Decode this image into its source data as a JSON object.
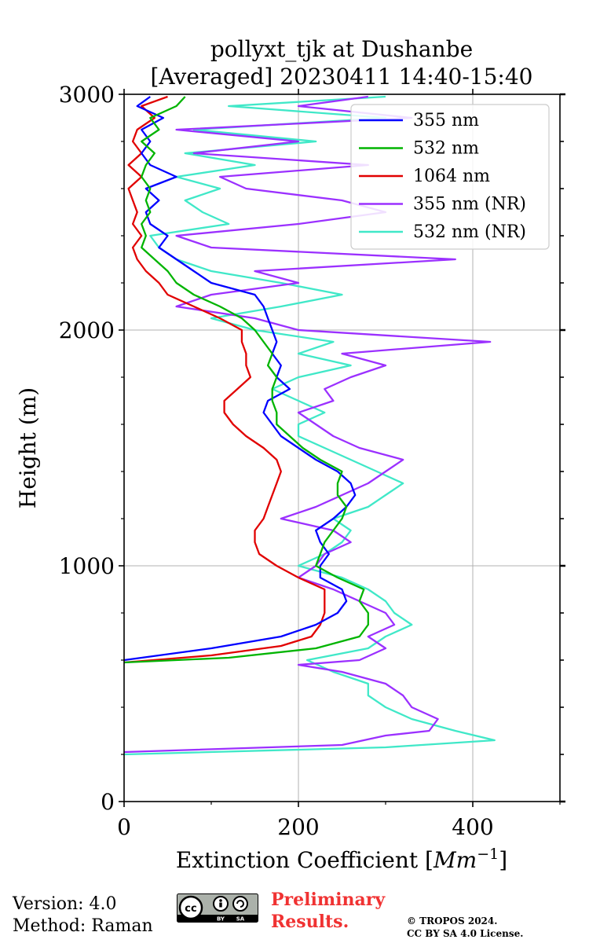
{
  "chart_data": {
    "type": "line",
    "orientation": "vertical-profile",
    "title_line1": "pollyxt_tjk at Dushanbe",
    "title_line2": "[Averaged] 20230411 14:40-15:40",
    "xlabel": "Extinction Coefficient [",
    "xlabel_unit": "Mm",
    "xlabel_exp": "−1",
    "xlabel_close": "]",
    "ylabel": "Height (m)",
    "xlim": [
      0,
      500
    ],
    "ylim": [
      0,
      3000
    ],
    "x_ticks": [
      "0",
      "200",
      "400"
    ],
    "y_ticks": [
      "0",
      "1000",
      "2000",
      "3000"
    ],
    "grid": true,
    "legend_position": "top-right",
    "series": [
      {
        "name": "355 nm",
        "color": "#0000ff",
        "points": [
          [
            0,
            600
          ],
          [
            100,
            650
          ],
          [
            180,
            700
          ],
          [
            220,
            750
          ],
          [
            245,
            800
          ],
          [
            255,
            850
          ],
          [
            250,
            900
          ],
          [
            225,
            950
          ],
          [
            225,
            1000
          ],
          [
            235,
            1050
          ],
          [
            225,
            1100
          ],
          [
            220,
            1150
          ],
          [
            240,
            1200
          ],
          [
            255,
            1250
          ],
          [
            265,
            1300
          ],
          [
            260,
            1350
          ],
          [
            245,
            1400
          ],
          [
            220,
            1450
          ],
          [
            200,
            1500
          ],
          [
            180,
            1550
          ],
          [
            170,
            1600
          ],
          [
            160,
            1650
          ],
          [
            165,
            1700
          ],
          [
            190,
            1750
          ],
          [
            175,
            1800
          ],
          [
            180,
            1850
          ],
          [
            170,
            1900
          ],
          [
            175,
            1950
          ],
          [
            170,
            2000
          ],
          [
            165,
            2050
          ],
          [
            160,
            2100
          ],
          [
            150,
            2150
          ],
          [
            100,
            2200
          ],
          [
            80,
            2250
          ],
          [
            60,
            2300
          ],
          [
            40,
            2350
          ],
          [
            50,
            2400
          ],
          [
            30,
            2450
          ],
          [
            25,
            2500
          ],
          [
            40,
            2550
          ],
          [
            25,
            2600
          ],
          [
            60,
            2650
          ],
          [
            30,
            2700
          ],
          [
            20,
            2750
          ],
          [
            30,
            2800
          ],
          [
            20,
            2850
          ],
          [
            45,
            2900
          ],
          [
            15,
            2950
          ],
          [
            30,
            2990
          ]
        ]
      },
      {
        "name": "532 nm",
        "color": "#00b400",
        "points": [
          [
            0,
            590
          ],
          [
            120,
            610
          ],
          [
            220,
            650
          ],
          [
            270,
            700
          ],
          [
            280,
            750
          ],
          [
            280,
            800
          ],
          [
            270,
            850
          ],
          [
            275,
            900
          ],
          [
            245,
            950
          ],
          [
            220,
            1000
          ],
          [
            225,
            1050
          ],
          [
            230,
            1100
          ],
          [
            240,
            1150
          ],
          [
            250,
            1200
          ],
          [
            255,
            1250
          ],
          [
            245,
            1300
          ],
          [
            245,
            1350
          ],
          [
            250,
            1400
          ],
          [
            225,
            1450
          ],
          [
            205,
            1500
          ],
          [
            190,
            1550
          ],
          [
            175,
            1600
          ],
          [
            175,
            1650
          ],
          [
            170,
            1700
          ],
          [
            170,
            1750
          ],
          [
            175,
            1800
          ],
          [
            165,
            1850
          ],
          [
            170,
            1900
          ],
          [
            160,
            1950
          ],
          [
            150,
            2000
          ],
          [
            135,
            2050
          ],
          [
            110,
            2100
          ],
          [
            80,
            2150
          ],
          [
            60,
            2200
          ],
          [
            50,
            2250
          ],
          [
            35,
            2300
          ],
          [
            20,
            2350
          ],
          [
            25,
            2400
          ],
          [
            20,
            2450
          ],
          [
            30,
            2500
          ],
          [
            25,
            2550
          ],
          [
            30,
            2600
          ],
          [
            20,
            2650
          ],
          [
            25,
            2700
          ],
          [
            35,
            2750
          ],
          [
            20,
            2800
          ],
          [
            40,
            2850
          ],
          [
            30,
            2900
          ],
          [
            60,
            2950
          ],
          [
            70,
            2990
          ]
        ]
      },
      {
        "name": "1064 nm",
        "color": "#e10000",
        "points": [
          [
            0,
            590
          ],
          [
            100,
            620
          ],
          [
            180,
            660
          ],
          [
            215,
            700
          ],
          [
            225,
            750
          ],
          [
            230,
            800
          ],
          [
            230,
            850
          ],
          [
            230,
            900
          ],
          [
            200,
            950
          ],
          [
            175,
            1000
          ],
          [
            155,
            1050
          ],
          [
            150,
            1100
          ],
          [
            150,
            1150
          ],
          [
            160,
            1200
          ],
          [
            165,
            1250
          ],
          [
            170,
            1300
          ],
          [
            175,
            1350
          ],
          [
            180,
            1400
          ],
          [
            175,
            1450
          ],
          [
            160,
            1500
          ],
          [
            140,
            1550
          ],
          [
            125,
            1600
          ],
          [
            115,
            1650
          ],
          [
            115,
            1700
          ],
          [
            130,
            1750
          ],
          [
            145,
            1800
          ],
          [
            140,
            1850
          ],
          [
            140,
            1900
          ],
          [
            135,
            1950
          ],
          [
            135,
            2000
          ],
          [
            110,
            2050
          ],
          [
            80,
            2100
          ],
          [
            50,
            2150
          ],
          [
            40,
            2200
          ],
          [
            25,
            2250
          ],
          [
            15,
            2300
          ],
          [
            10,
            2350
          ],
          [
            20,
            2400
          ],
          [
            10,
            2450
          ],
          [
            15,
            2500
          ],
          [
            10,
            2550
          ],
          [
            5,
            2600
          ],
          [
            20,
            2650
          ],
          [
            5,
            2700
          ],
          [
            20,
            2750
          ],
          [
            10,
            2800
          ],
          [
            15,
            2850
          ],
          [
            35,
            2900
          ],
          [
            20,
            2950
          ],
          [
            50,
            2990
          ]
        ]
      },
      {
        "name": "355 nm (NR)",
        "color": "#9b30ff",
        "points": [
          [
            0,
            210
          ],
          [
            250,
            240
          ],
          [
            300,
            280
          ],
          [
            350,
            300
          ],
          [
            360,
            350
          ],
          [
            330,
            400
          ],
          [
            320,
            450
          ],
          [
            300,
            500
          ],
          [
            250,
            550
          ],
          [
            200,
            580
          ],
          [
            270,
            600
          ],
          [
            300,
            650
          ],
          [
            280,
            700
          ],
          [
            310,
            750
          ],
          [
            300,
            800
          ],
          [
            270,
            850
          ],
          [
            240,
            900
          ],
          [
            200,
            950
          ],
          [
            220,
            1000
          ],
          [
            230,
            1050
          ],
          [
            260,
            1100
          ],
          [
            240,
            1150
          ],
          [
            180,
            1200
          ],
          [
            220,
            1250
          ],
          [
            250,
            1300
          ],
          [
            280,
            1350
          ],
          [
            300,
            1400
          ],
          [
            320,
            1450
          ],
          [
            270,
            1500
          ],
          [
            240,
            1550
          ],
          [
            220,
            1600
          ],
          [
            200,
            1650
          ],
          [
            240,
            1700
          ],
          [
            230,
            1750
          ],
          [
            260,
            1800
          ],
          [
            300,
            1850
          ],
          [
            250,
            1900
          ],
          [
            420,
            1950
          ],
          [
            200,
            2000
          ],
          [
            150,
            2050
          ],
          [
            60,
            2100
          ],
          [
            100,
            2150
          ],
          [
            200,
            2200
          ],
          [
            150,
            2250
          ],
          [
            380,
            2300
          ],
          [
            100,
            2350
          ],
          [
            60,
            2400
          ],
          [
            200,
            2450
          ],
          [
            300,
            2500
          ],
          [
            250,
            2550
          ],
          [
            140,
            2600
          ],
          [
            110,
            2650
          ],
          [
            280,
            2700
          ],
          [
            80,
            2750
          ],
          [
            200,
            2800
          ],
          [
            60,
            2850
          ],
          [
            330,
            2900
          ],
          [
            200,
            2950
          ],
          [
            280,
            2990
          ]
        ]
      },
      {
        "name": "532 nm (NR)",
        "color": "#40e8c8",
        "points": [
          [
            0,
            200
          ],
          [
            300,
            230
          ],
          [
            425,
            260
          ],
          [
            380,
            300
          ],
          [
            330,
            350
          ],
          [
            300,
            400
          ],
          [
            280,
            450
          ],
          [
            280,
            500
          ],
          [
            240,
            550
          ],
          [
            210,
            600
          ],
          [
            280,
            650
          ],
          [
            300,
            700
          ],
          [
            330,
            750
          ],
          [
            310,
            800
          ],
          [
            300,
            850
          ],
          [
            280,
            900
          ],
          [
            250,
            950
          ],
          [
            200,
            1000
          ],
          [
            230,
            1050
          ],
          [
            250,
            1100
          ],
          [
            260,
            1150
          ],
          [
            240,
            1200
          ],
          [
            280,
            1250
          ],
          [
            300,
            1300
          ],
          [
            320,
            1350
          ],
          [
            290,
            1400
          ],
          [
            260,
            1450
          ],
          [
            230,
            1500
          ],
          [
            200,
            1550
          ],
          [
            200,
            1600
          ],
          [
            230,
            1650
          ],
          [
            200,
            1700
          ],
          [
            170,
            1750
          ],
          [
            200,
            1800
          ],
          [
            260,
            1850
          ],
          [
            200,
            1900
          ],
          [
            240,
            1950
          ],
          [
            150,
            2000
          ],
          [
            100,
            2050
          ],
          [
            180,
            2100
          ],
          [
            250,
            2150
          ],
          [
            180,
            2200
          ],
          [
            100,
            2250
          ],
          [
            60,
            2300
          ],
          [
            40,
            2350
          ],
          [
            30,
            2400
          ],
          [
            120,
            2450
          ],
          [
            90,
            2500
          ],
          [
            70,
            2550
          ],
          [
            110,
            2600
          ],
          [
            60,
            2650
          ],
          [
            150,
            2700
          ],
          [
            70,
            2750
          ],
          [
            220,
            2800
          ],
          [
            80,
            2850
          ],
          [
            300,
            2900
          ],
          [
            120,
            2950
          ],
          [
            300,
            2990
          ]
        ]
      }
    ]
  },
  "footer": {
    "version": "Version: 4.0",
    "method": "Method: Raman",
    "preliminary_line1": "Preliminary",
    "preliminary_line2": "Results.",
    "copyright_line1": "© TROPOS 2024.",
    "copyright_line2": "CC BY SA 4.0 License.",
    "cc_icon": "cc-by-sa-icon",
    "preliminary_color": "#f03232"
  }
}
